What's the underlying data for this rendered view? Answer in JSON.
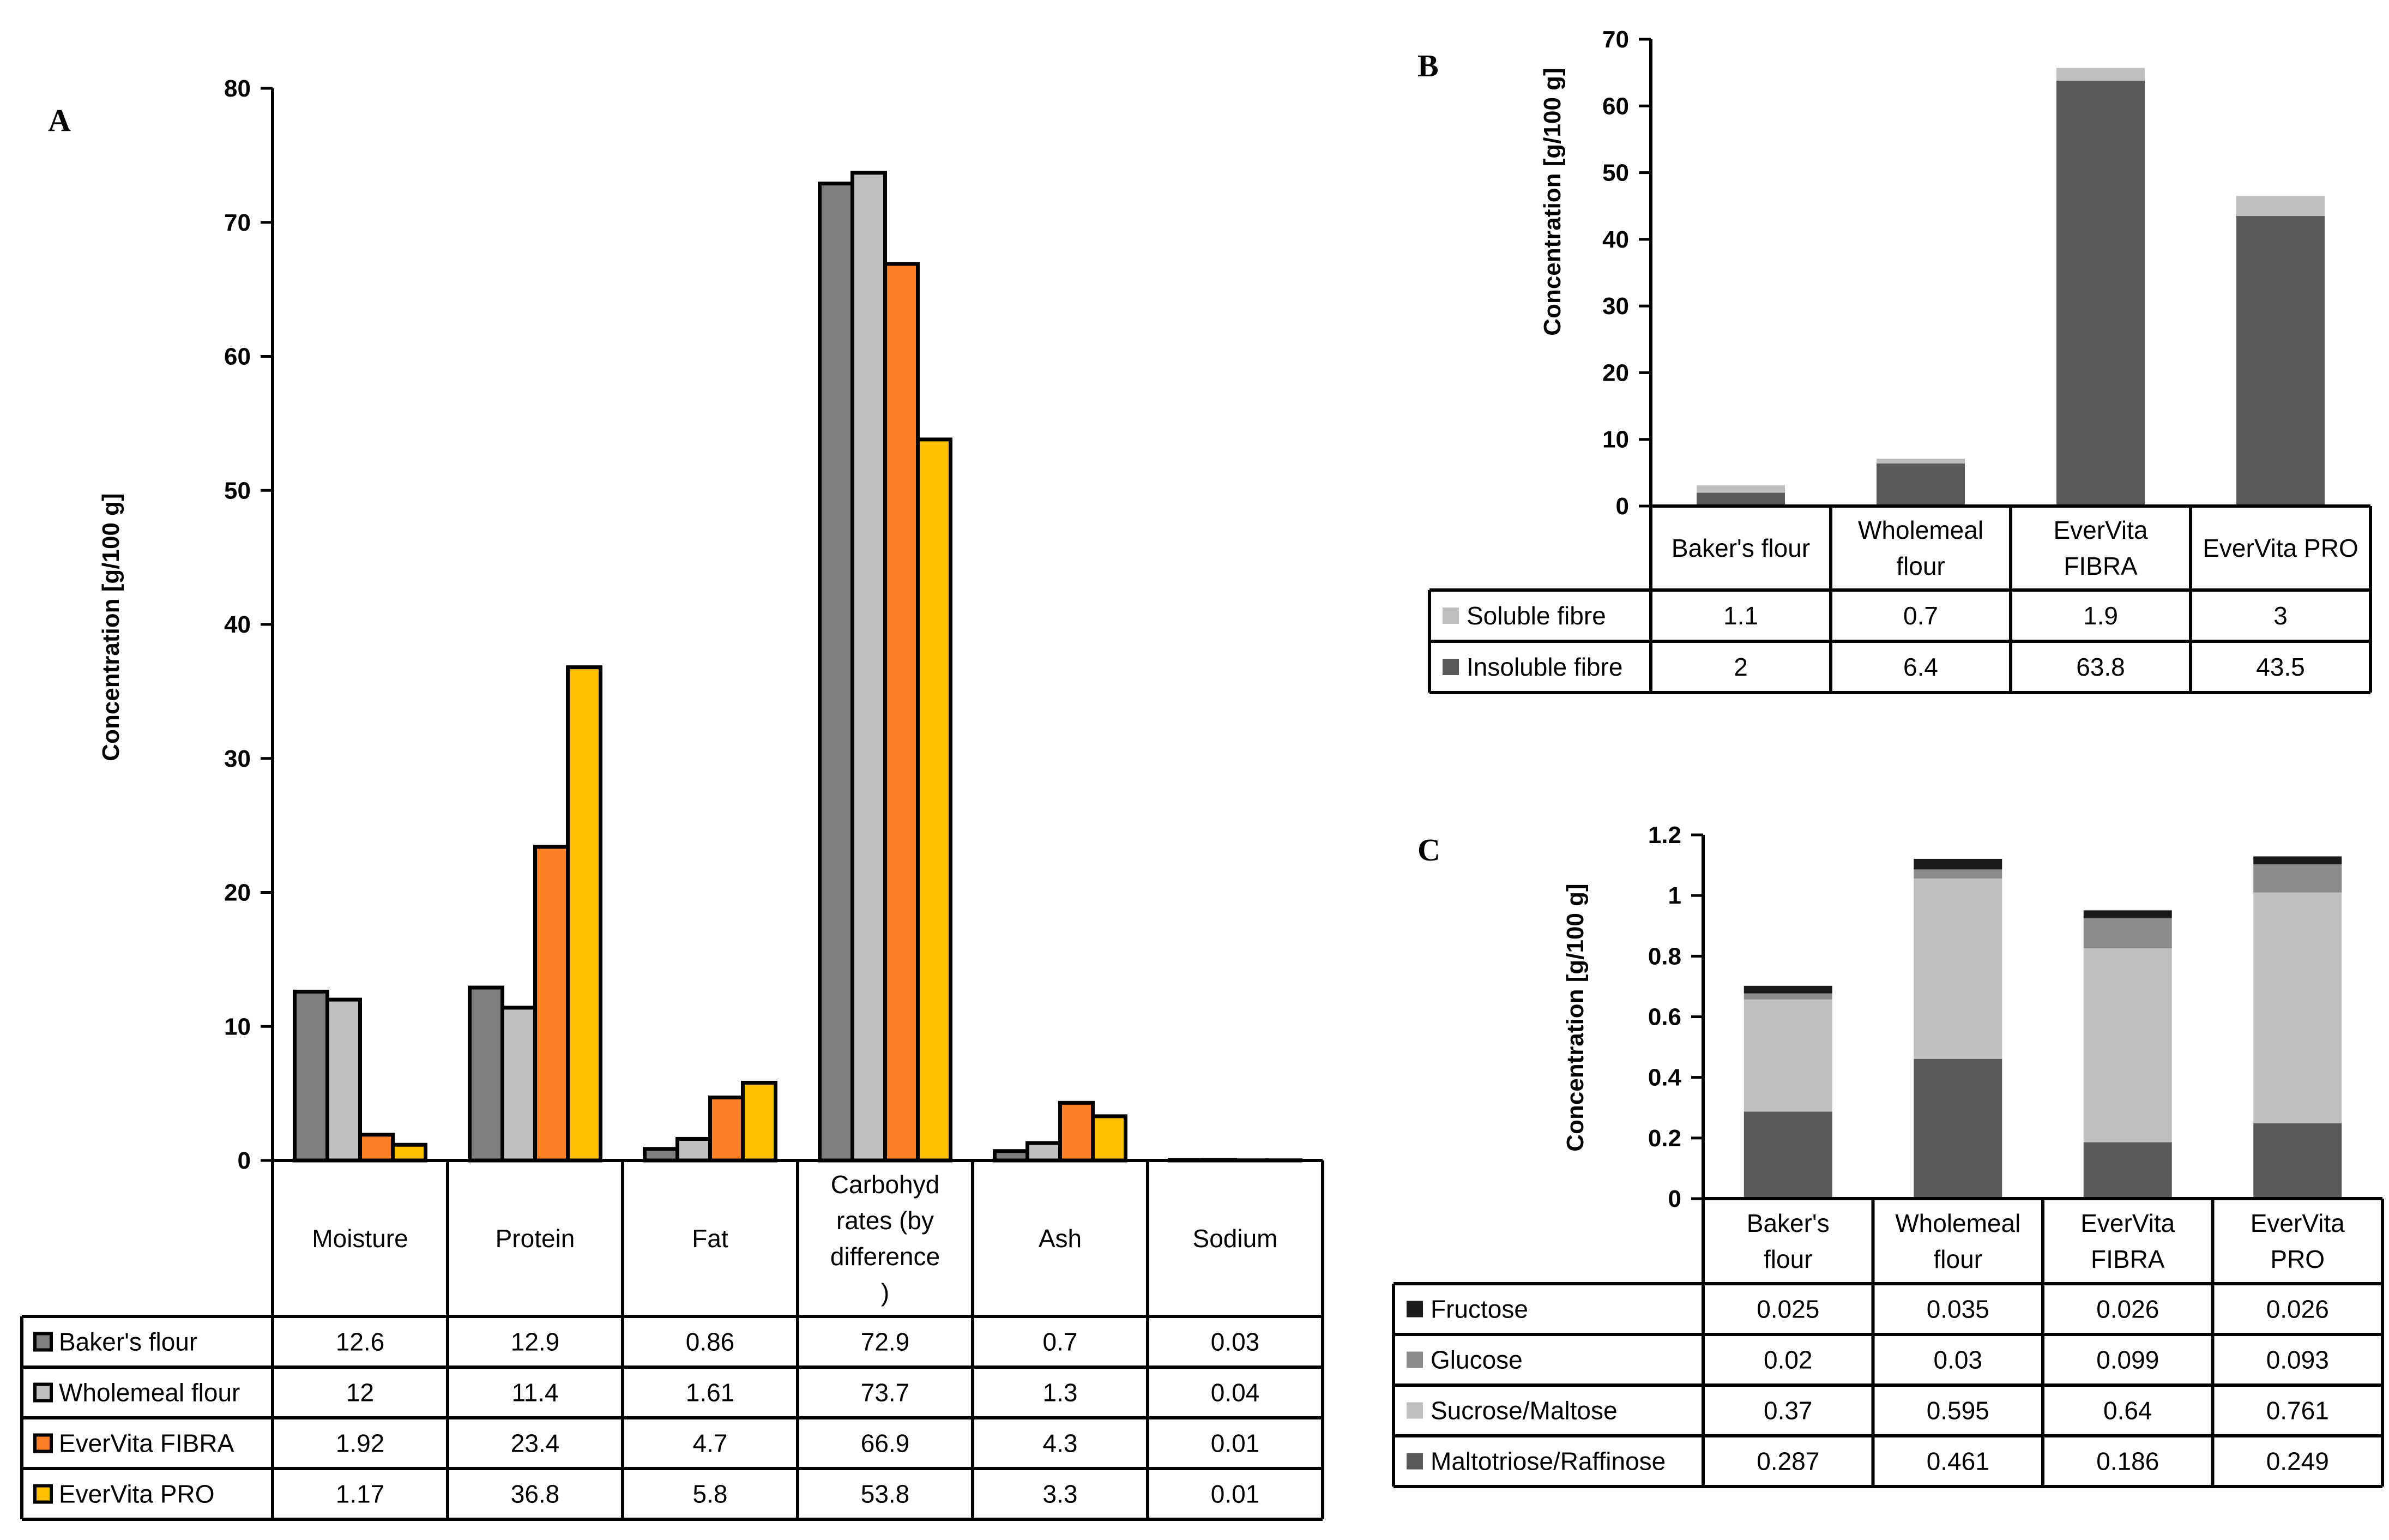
{
  "chart_data": [
    {
      "panel": "A",
      "type": "bar",
      "ylabel": "Concentration [g/100 g]",
      "ylim": [
        0,
        80
      ],
      "yticks": [
        0,
        10,
        20,
        30,
        40,
        50,
        60,
        70,
        80
      ],
      "categories": [
        "Moisture",
        "Protein",
        "Fat",
        "Carbohyd rates (by difference )",
        "Ash",
        "Sodium"
      ],
      "category_lines": [
        [
          "Moisture"
        ],
        [
          "Protein"
        ],
        [
          "Fat"
        ],
        [
          "Carbohyd",
          "rates (by",
          "difference",
          ")"
        ],
        [
          "Ash"
        ],
        [
          "Sodium"
        ]
      ],
      "series": [
        {
          "name": "Baker's flour",
          "color": "#7f7f7f",
          "values": [
            12.6,
            12.9,
            0.86,
            72.9,
            0.7,
            0.03
          ]
        },
        {
          "name": "Wholemeal flour",
          "color": "#c0c0c0",
          "values": [
            12,
            11.4,
            1.61,
            73.7,
            1.3,
            0.04
          ]
        },
        {
          "name": "EverVita FIBRA",
          "color": "#ff7f27",
          "values": [
            1.92,
            23.4,
            4.7,
            66.9,
            4.3,
            0.01
          ]
        },
        {
          "name": "EverVita PRO",
          "color": "#ffc000",
          "values": [
            1.17,
            36.8,
            5.8,
            53.8,
            3.3,
            0.01
          ]
        }
      ],
      "table": [
        [
          "12.6",
          "12.9",
          "0.86",
          "72.9",
          "0.7",
          "0.03"
        ],
        [
          "12",
          "11.4",
          "1.61",
          "73.7",
          "1.3",
          "0.04"
        ],
        [
          "1.92",
          "23.4",
          "4.7",
          "66.9",
          "4.3",
          "0.01"
        ],
        [
          "1.17",
          "36.8",
          "5.8",
          "53.8",
          "3.3",
          "0.01"
        ]
      ]
    },
    {
      "panel": "B",
      "type": "stacked-bar",
      "ylabel": "Concentration [g/100 g]",
      "ylim": [
        0,
        70
      ],
      "yticks": [
        0,
        10,
        20,
        30,
        40,
        50,
        60,
        70
      ],
      "categories": [
        "Baker's flour",
        "Wholemeal flour",
        "EverVita FIBRA",
        "EverVita PRO"
      ],
      "category_lines": [
        [
          "Baker's flour"
        ],
        [
          "Wholemeal",
          "flour"
        ],
        [
          "EverVita",
          "FIBRA"
        ],
        [
          "EverVita PRO"
        ]
      ],
      "series": [
        {
          "name": "Insoluble fibre",
          "color": "#595959",
          "values": [
            2,
            6.4,
            63.8,
            43.5
          ]
        },
        {
          "name": "Soluble fibre",
          "color": "#bfbfbf",
          "values": [
            1.1,
            0.7,
            1.9,
            3
          ]
        }
      ],
      "table_order": [
        "Soluble fibre",
        "Insoluble fibre"
      ],
      "table": [
        [
          "1.1",
          "0.7",
          "1.9",
          "3"
        ],
        [
          "2",
          "6.4",
          "63.8",
          "43.5"
        ]
      ]
    },
    {
      "panel": "C",
      "type": "stacked-bar",
      "ylabel": "Concentration [g/100 g]",
      "ylim": [
        0,
        1.2
      ],
      "yticks": [
        "0",
        "0.2",
        "0.4",
        "0.6",
        "0.8",
        "1",
        "1.2"
      ],
      "categories": [
        "Baker's flour",
        "Wholemeal flour",
        "EverVita FIBRA",
        "EverVita PRO"
      ],
      "category_lines": [
        [
          "Baker's",
          "flour"
        ],
        [
          "Wholemeal",
          "flour"
        ],
        [
          "EverVita",
          "FIBRA"
        ],
        [
          "EverVita",
          "PRO"
        ]
      ],
      "series": [
        {
          "name": "Maltotriose/Raffinose",
          "color": "#595959",
          "values": [
            0.287,
            0.461,
            0.186,
            0.249
          ]
        },
        {
          "name": "Sucrose/Maltose",
          "color": "#bfbfbf",
          "values": [
            0.37,
            0.595,
            0.64,
            0.761
          ]
        },
        {
          "name": "Glucose",
          "color": "#8c8c8c",
          "values": [
            0.02,
            0.03,
            0.099,
            0.093
          ]
        },
        {
          "name": "Fructose",
          "color": "#1a1a1a",
          "values": [
            0.025,
            0.035,
            0.026,
            0.026
          ]
        }
      ],
      "table_order": [
        "Fructose",
        "Glucose",
        "Sucrose/Maltose",
        "Maltotriose/Raffinose"
      ],
      "table": [
        [
          "0.025",
          "0.035",
          "0.026",
          "0.026"
        ],
        [
          "0.02",
          "0.03",
          "0.099",
          "0.093"
        ],
        [
          "0.37",
          "0.595",
          "0.64",
          "0.761"
        ],
        [
          "0.287",
          "0.461",
          "0.186",
          "0.249"
        ]
      ]
    }
  ]
}
